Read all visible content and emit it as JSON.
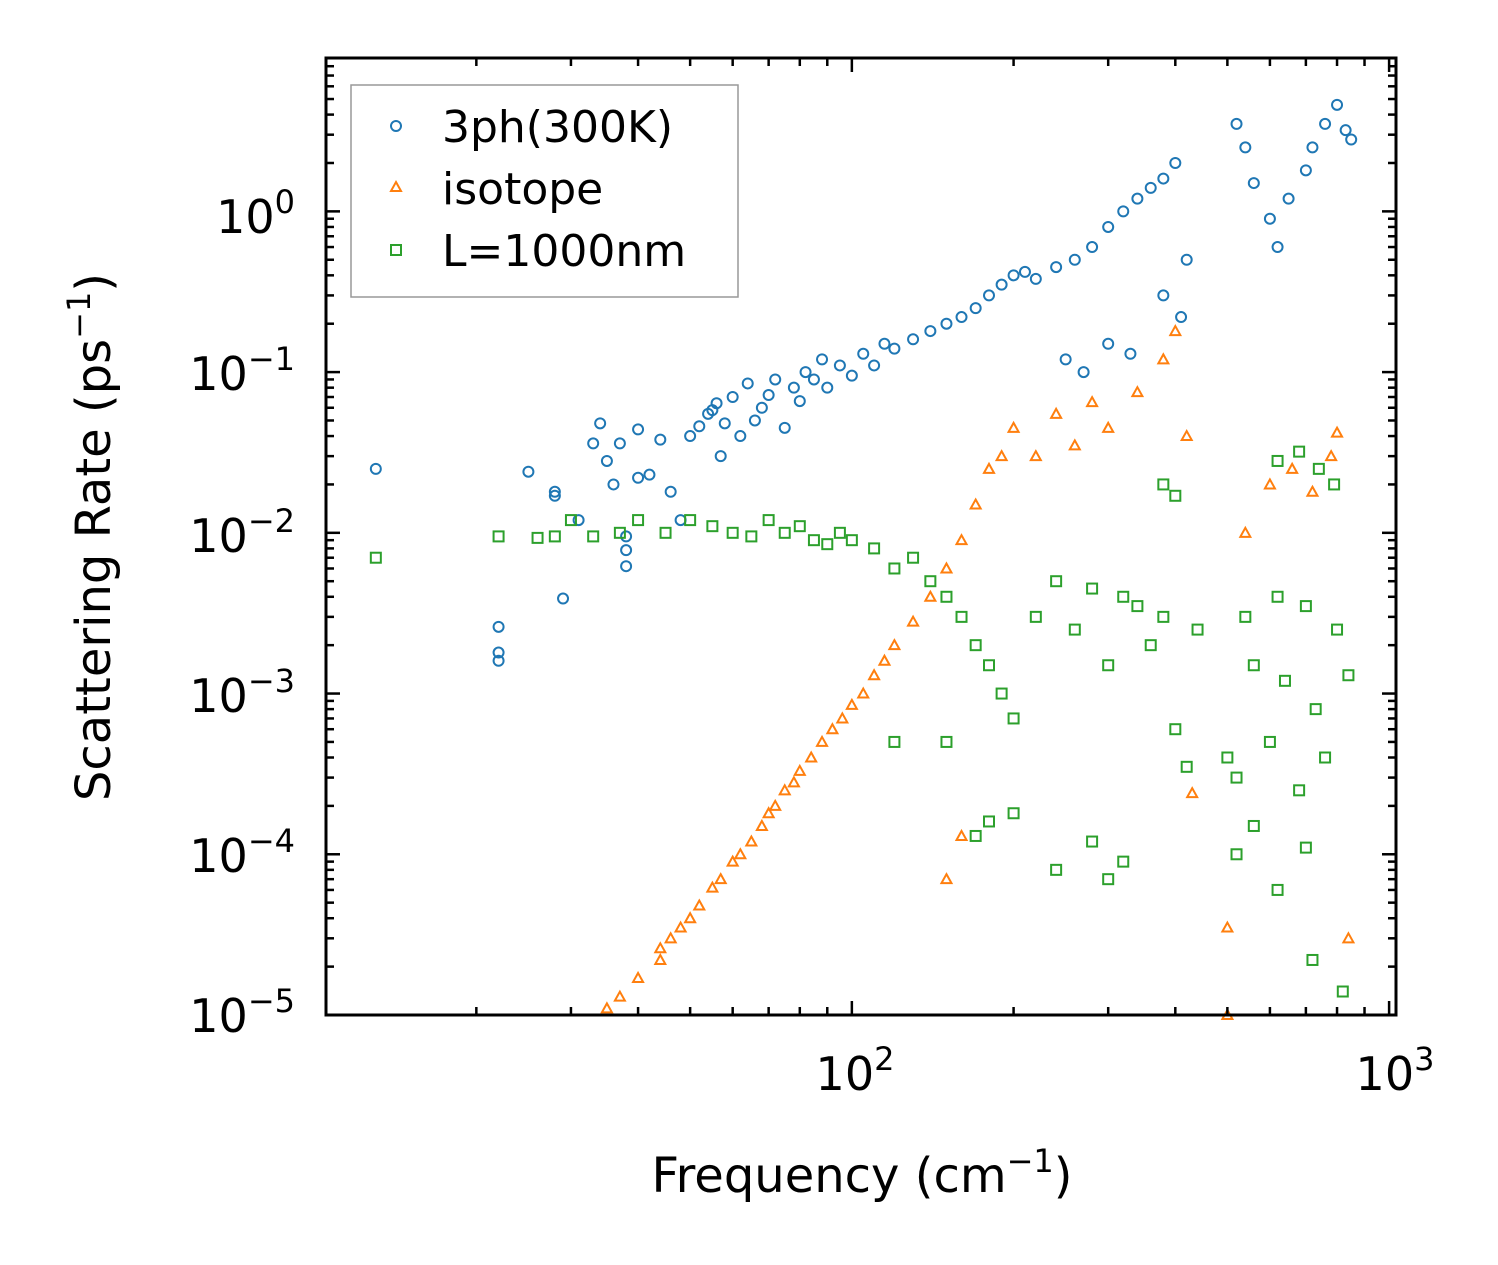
{
  "chart_data": {
    "type": "scatter",
    "title": "",
    "xlabel": "Frequency (cm",
    "xlabel_sup": "−1",
    "xlabel_end": ")",
    "ylabel": "Scattering Rate (ps",
    "ylabel_sup": "−1",
    "ylabel_end": ")",
    "xscale": "log",
    "yscale": "log",
    "xlim": [
      10.5,
      1030
    ],
    "ylim": [
      1e-05,
      9
    ],
    "x_ticks": [
      {
        "base": "10",
        "exp": "2",
        "value": 100
      },
      {
        "base": "10",
        "exp": "3",
        "value": 1000
      }
    ],
    "y_ticks": [
      {
        "base": "10",
        "exp": "0",
        "value": 1
      },
      {
        "base": "10",
        "exp": "−1",
        "value": 0.1
      },
      {
        "base": "10",
        "exp": "−2",
        "value": 0.01
      },
      {
        "base": "10",
        "exp": "−3",
        "value": 0.001
      },
      {
        "base": "10",
        "exp": "−4",
        "value": 0.0001
      },
      {
        "base": "10",
        "exp": "−5",
        "value": 1e-05
      }
    ],
    "legend_position": "top-left",
    "grid": false,
    "series": [
      {
        "name": "3ph(300K)",
        "marker": "circle",
        "color": "#1f77b4",
        "points": [
          [
            13,
            0.025
          ],
          [
            22,
            0.0026
          ],
          [
            22,
            0.0018
          ],
          [
            22,
            0.0016
          ],
          [
            25,
            0.024
          ],
          [
            28,
            0.017
          ],
          [
            28,
            0.018
          ],
          [
            29,
            0.0039
          ],
          [
            31,
            0.012
          ],
          [
            33,
            0.036
          ],
          [
            34,
            0.048
          ],
          [
            35,
            0.028
          ],
          [
            36,
            0.02
          ],
          [
            37,
            0.036
          ],
          [
            38,
            0.0095
          ],
          [
            38,
            0.0078
          ],
          [
            38,
            0.0062
          ],
          [
            40,
            0.044
          ],
          [
            40,
            0.022
          ],
          [
            42,
            0.023
          ],
          [
            44,
            0.038
          ],
          [
            46,
            0.018
          ],
          [
            48,
            0.012
          ],
          [
            50,
            0.04
          ],
          [
            52,
            0.046
          ],
          [
            54,
            0.055
          ],
          [
            55,
            0.058
          ],
          [
            56,
            0.064
          ],
          [
            57,
            0.03
          ],
          [
            58,
            0.048
          ],
          [
            60,
            0.07
          ],
          [
            62,
            0.04
          ],
          [
            64,
            0.085
          ],
          [
            66,
            0.05
          ],
          [
            68,
            0.06
          ],
          [
            70,
            0.072
          ],
          [
            72,
            0.09
          ],
          [
            75,
            0.045
          ],
          [
            78,
            0.08
          ],
          [
            80,
            0.066
          ],
          [
            82,
            0.1
          ],
          [
            85,
            0.09
          ],
          [
            88,
            0.12
          ],
          [
            90,
            0.08
          ],
          [
            95,
            0.11
          ],
          [
            100,
            0.095
          ],
          [
            105,
            0.13
          ],
          [
            110,
            0.11
          ],
          [
            115,
            0.15
          ],
          [
            120,
            0.14
          ],
          [
            130,
            0.16
          ],
          [
            140,
            0.18
          ],
          [
            150,
            0.2
          ],
          [
            160,
            0.22
          ],
          [
            170,
            0.25
          ],
          [
            180,
            0.3
          ],
          [
            190,
            0.35
          ],
          [
            200,
            0.4
          ],
          [
            210,
            0.42
          ],
          [
            220,
            0.38
          ],
          [
            240,
            0.45
          ],
          [
            260,
            0.5
          ],
          [
            280,
            0.6
          ],
          [
            300,
            0.8
          ],
          [
            320,
            1.0
          ],
          [
            340,
            1.2
          ],
          [
            360,
            1.4
          ],
          [
            380,
            1.6
          ],
          [
            400,
            2.0
          ],
          [
            420,
            0.5
          ],
          [
            250,
            0.12
          ],
          [
            270,
            0.1
          ],
          [
            300,
            0.15
          ],
          [
            330,
            0.13
          ],
          [
            380,
            0.3
          ],
          [
            410,
            0.22
          ],
          [
            520,
            3.5
          ],
          [
            540,
            2.5
          ],
          [
            560,
            1.5
          ],
          [
            600,
            0.9
          ],
          [
            620,
            0.6
          ],
          [
            650,
            1.2
          ],
          [
            700,
            1.8
          ],
          [
            720,
            2.5
          ],
          [
            760,
            3.5
          ],
          [
            800,
            4.6
          ],
          [
            830,
            3.2
          ],
          [
            850,
            2.8
          ]
        ]
      },
      {
        "name": "isotope",
        "marker": "triangle",
        "color": "#ff7f0e",
        "points": [
          [
            35,
            1.1e-05
          ],
          [
            37,
            1.3e-05
          ],
          [
            40,
            1.7e-05
          ],
          [
            44,
            2.2e-05
          ],
          [
            44,
            2.6e-05
          ],
          [
            46,
            3e-05
          ],
          [
            48,
            3.5e-05
          ],
          [
            50,
            4e-05
          ],
          [
            52,
            4.8e-05
          ],
          [
            55,
            6.2e-05
          ],
          [
            57,
            7e-05
          ],
          [
            60,
            9e-05
          ],
          [
            62,
            0.0001
          ],
          [
            65,
            0.00012
          ],
          [
            68,
            0.00015
          ],
          [
            70,
            0.00018
          ],
          [
            72,
            0.0002
          ],
          [
            75,
            0.00025
          ],
          [
            78,
            0.00028
          ],
          [
            80,
            0.00033
          ],
          [
            84,
            0.0004
          ],
          [
            88,
            0.0005
          ],
          [
            92,
            0.0006
          ],
          [
            96,
            0.0007
          ],
          [
            100,
            0.00085
          ],
          [
            105,
            0.001
          ],
          [
            110,
            0.0013
          ],
          [
            115,
            0.0016
          ],
          [
            120,
            0.002
          ],
          [
            130,
            0.0028
          ],
          [
            140,
            0.004
          ],
          [
            150,
            0.006
          ],
          [
            160,
            0.009
          ],
          [
            170,
            0.015
          ],
          [
            180,
            0.025
          ],
          [
            190,
            0.03
          ],
          [
            200,
            0.045
          ],
          [
            220,
            0.03
          ],
          [
            240,
            0.055
          ],
          [
            260,
            0.035
          ],
          [
            280,
            0.065
          ],
          [
            300,
            0.045
          ],
          [
            340,
            0.075
          ],
          [
            380,
            0.12
          ],
          [
            400,
            0.18
          ],
          [
            420,
            0.04
          ],
          [
            150,
            7e-05
          ],
          [
            160,
            0.00013
          ],
          [
            430,
            0.00024
          ],
          [
            500,
            3.5e-05
          ],
          [
            500,
            1e-05
          ],
          [
            540,
            0.01
          ],
          [
            600,
            0.02
          ],
          [
            660,
            0.025
          ],
          [
            720,
            0.018
          ],
          [
            780,
            0.03
          ],
          [
            800,
            0.042
          ],
          [
            840,
            3e-05
          ]
        ]
      },
      {
        "name": "L=1000nm",
        "marker": "square",
        "color": "#2ca02c",
        "points": [
          [
            13,
            0.007
          ],
          [
            22,
            0.0095
          ],
          [
            26,
            0.0093
          ],
          [
            28,
            0.0095
          ],
          [
            30,
            0.012
          ],
          [
            33,
            0.0095
          ],
          [
            37,
            0.01
          ],
          [
            40,
            0.012
          ],
          [
            45,
            0.01
          ],
          [
            50,
            0.012
          ],
          [
            55,
            0.011
          ],
          [
            60,
            0.01
          ],
          [
            65,
            0.0095
          ],
          [
            70,
            0.012
          ],
          [
            75,
            0.01
          ],
          [
            80,
            0.011
          ],
          [
            85,
            0.009
          ],
          [
            90,
            0.0085
          ],
          [
            95,
            0.01
          ],
          [
            100,
            0.009
          ],
          [
            110,
            0.008
          ],
          [
            120,
            0.006
          ],
          [
            130,
            0.007
          ],
          [
            140,
            0.005
          ],
          [
            150,
            0.004
          ],
          [
            160,
            0.003
          ],
          [
            170,
            0.002
          ],
          [
            180,
            0.0015
          ],
          [
            190,
            0.001
          ],
          [
            200,
            0.0007
          ],
          [
            220,
            0.003
          ],
          [
            240,
            0.005
          ],
          [
            260,
            0.0025
          ],
          [
            280,
            0.0045
          ],
          [
            300,
            0.0015
          ],
          [
            320,
            0.004
          ],
          [
            340,
            0.0035
          ],
          [
            360,
            0.002
          ],
          [
            380,
            0.003
          ],
          [
            400,
            0.0006
          ],
          [
            420,
            0.00035
          ],
          [
            440,
            0.0025
          ],
          [
            500,
            0.0004
          ],
          [
            520,
            0.0003
          ],
          [
            540,
            0.003
          ],
          [
            560,
            0.0015
          ],
          [
            600,
            0.0005
          ],
          [
            620,
            0.004
          ],
          [
            640,
            0.0012
          ],
          [
            680,
            0.00025
          ],
          [
            700,
            0.0035
          ],
          [
            730,
            0.0008
          ],
          [
            760,
            0.0004
          ],
          [
            800,
            0.0025
          ],
          [
            840,
            0.0013
          ],
          [
            120,
            0.0005
          ],
          [
            150,
            0.0005
          ],
          [
            170,
            0.00013
          ],
          [
            180,
            0.00016
          ],
          [
            200,
            0.00018
          ],
          [
            240,
            8e-05
          ],
          [
            280,
            0.00012
          ],
          [
            300,
            7e-05
          ],
          [
            320,
            9e-05
          ],
          [
            520,
            0.0001
          ],
          [
            560,
            0.00015
          ],
          [
            620,
            6e-05
          ],
          [
            700,
            0.00011
          ],
          [
            720,
            2.2e-05
          ],
          [
            820,
            1.4e-05
          ],
          [
            380,
            0.02
          ],
          [
            400,
            0.017
          ],
          [
            620,
            0.028
          ],
          [
            680,
            0.032
          ],
          [
            740,
            0.025
          ],
          [
            790,
            0.02
          ]
        ]
      }
    ]
  }
}
